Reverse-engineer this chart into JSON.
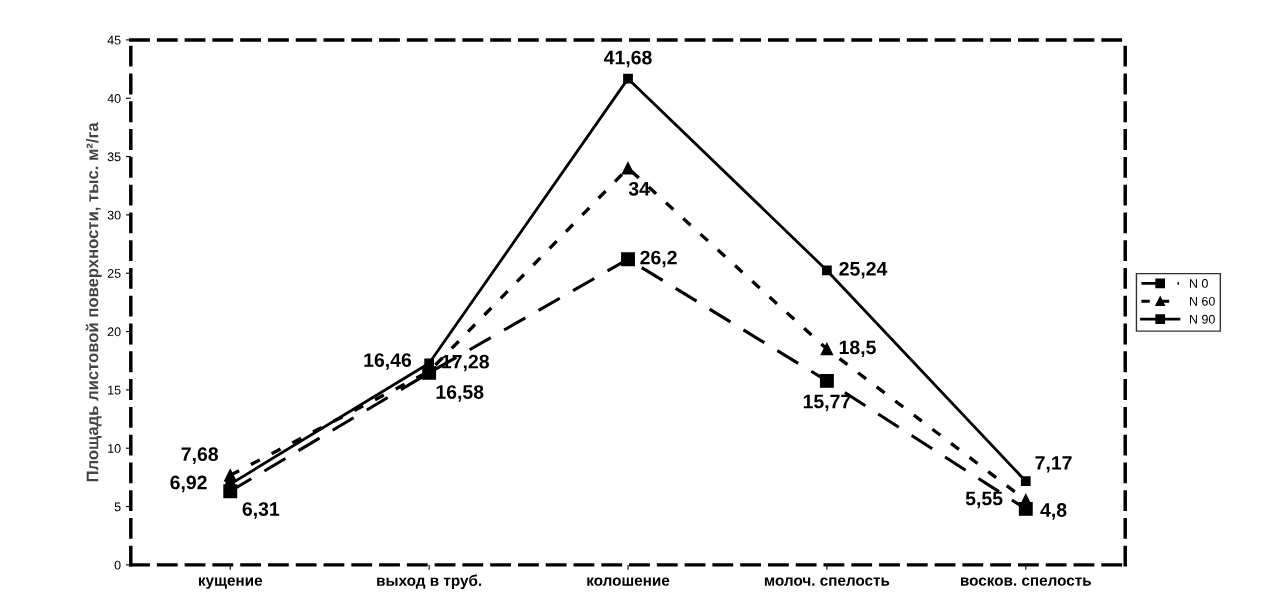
{
  "chart_data": {
    "type": "line",
    "ylabel": "Площадь листовой поверхности, тыс. м²/га",
    "categories": [
      "кущение",
      "выход в труб.",
      "колошение",
      "молоч. спелость",
      "восков. спелость"
    ],
    "series": [
      {
        "name": "N 0",
        "color": "#000000",
        "line_style": "dashed",
        "marker": "square",
        "values": [
          6.31,
          16.46,
          26.2,
          15.77,
          4.8
        ],
        "value_labels": [
          "6,31",
          "16,46",
          "26,2",
          "15,77",
          "4,8"
        ]
      },
      {
        "name": "N 60",
        "color": "#000000",
        "line_style": "dotted",
        "marker": "triangle",
        "values": [
          7.68,
          16.58,
          34,
          18.5,
          5.55
        ],
        "value_labels": [
          "7,68",
          "16,58",
          "34",
          "18,5",
          "5,55"
        ]
      },
      {
        "name": "N 90",
        "color": "#000000",
        "line_style": "solid",
        "marker": "square",
        "values": [
          6.92,
          17.28,
          41.68,
          25.24,
          7.17
        ],
        "value_labels": [
          "6,92",
          "17,28",
          "41,68",
          "25,24",
          "7,17"
        ]
      }
    ],
    "ylim": [
      0,
      45
    ],
    "yticks": [
      0,
      5,
      10,
      15,
      20,
      25,
      30,
      35,
      40,
      45
    ],
    "grid": false,
    "legend": "right"
  }
}
